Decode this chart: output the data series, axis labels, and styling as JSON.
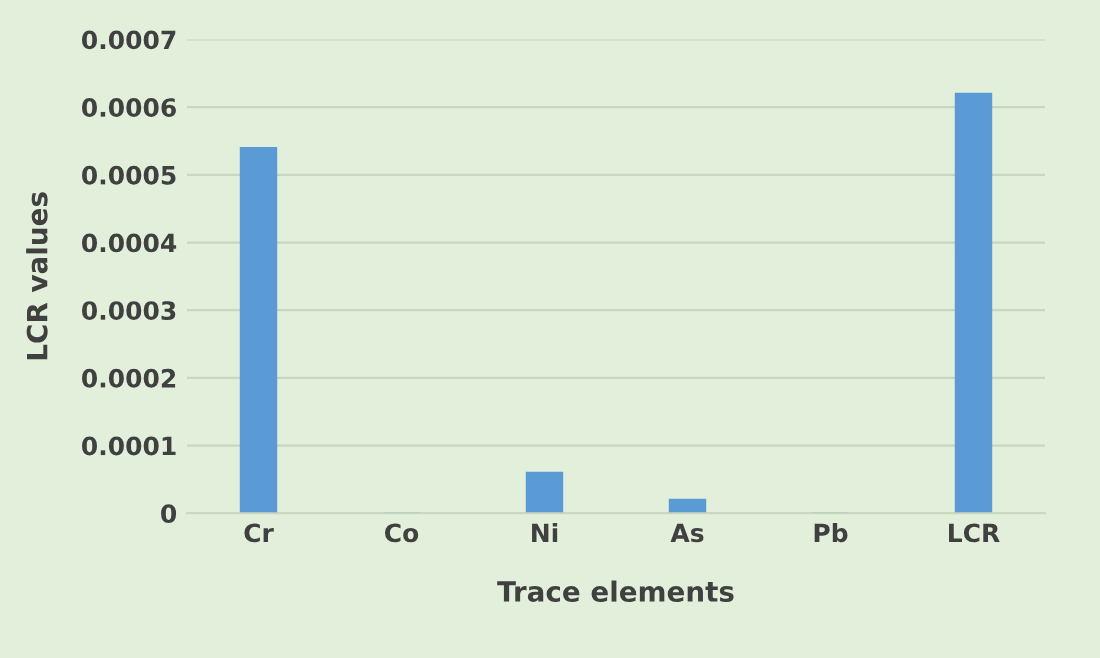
{
  "chart_data": {
    "type": "bar",
    "xlabel": "Trace elements",
    "ylabel": "LCR values",
    "categories": [
      "Cr",
      "Co",
      "Ni",
      "As",
      "Pb",
      "LCR"
    ],
    "values": [
      0.00054,
      0.0,
      6e-05,
      2e-05,
      0.0,
      0.00062
    ],
    "color": "#5b9bd5",
    "ylim": [
      0,
      0.0007
    ],
    "yticks": [
      0,
      0.0001,
      0.0002,
      0.0003,
      0.0004,
      0.0005,
      0.0006,
      0.0007
    ],
    "grid": "y",
    "legend": false
  }
}
